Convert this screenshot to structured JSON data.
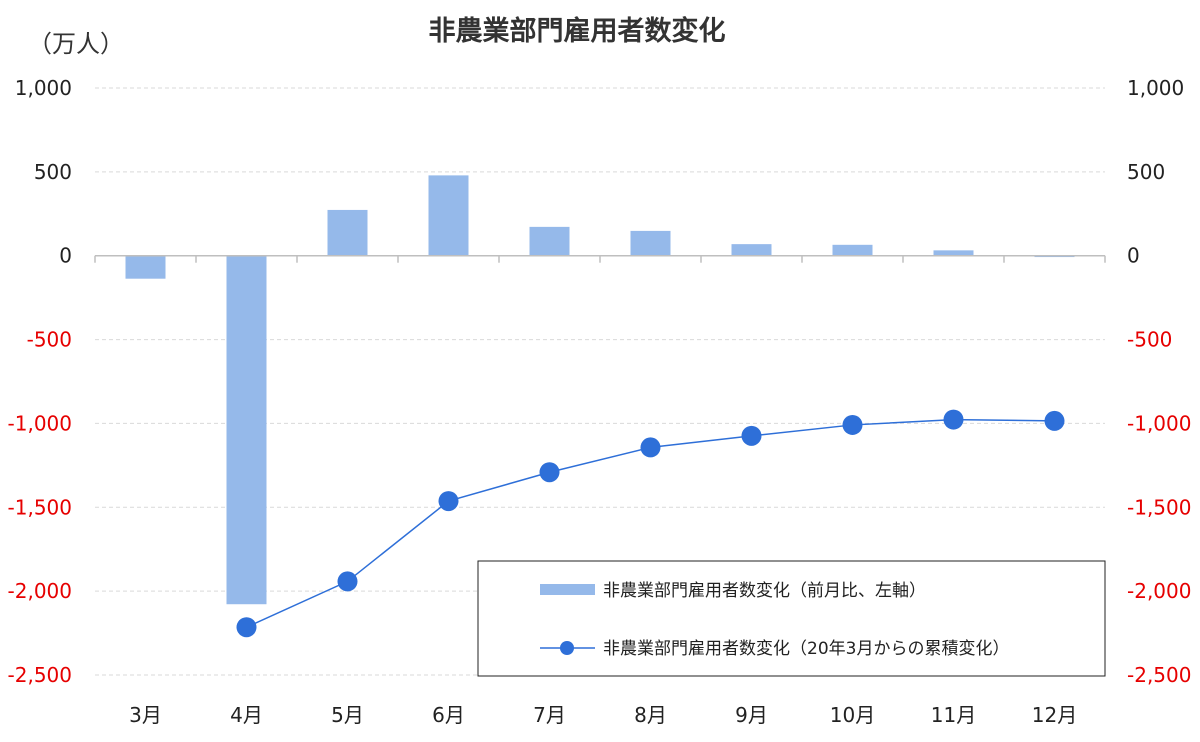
{
  "chart_data": {
    "type": "bar+line",
    "title": "非農業部門雇用者数変化",
    "unit_label": "（万人）",
    "categories": [
      "3月",
      "4月",
      "5月",
      "6月",
      "7月",
      "8月",
      "9月",
      "10月",
      "11月",
      "12月"
    ],
    "series": [
      {
        "name": "非農業部門雇用者数変化（前月比、左軸）",
        "type": "bar",
        "axis": "left",
        "values": [
          -137,
          -2078,
          273,
          479,
          172,
          148,
          69,
          65,
          32,
          -8
        ]
      },
      {
        "name": "非農業部門雇用者数変化（20年3月からの累積変化）",
        "type": "line",
        "axis": "right",
        "values": [
          null,
          -2215,
          -1942,
          -1463,
          -1291,
          -1143,
          -1074,
          -1009,
          -977,
          -985
        ]
      }
    ],
    "y_left": {
      "ticks": [
        1000,
        500,
        0,
        -500,
        -1000,
        -1500,
        -2000,
        -2500
      ],
      "tick_labels": [
        "1,000",
        "500",
        "0",
        "-500",
        "-1,000",
        "-1,500",
        "-2,000",
        "-2,500"
      ],
      "range": [
        -2500,
        1000
      ]
    },
    "y_right": {
      "ticks": [
        1000,
        500,
        0,
        -500,
        -1000,
        -1500,
        -2000,
        -2500
      ],
      "tick_labels": [
        "1,000",
        "500",
        "0",
        "-500",
        "-1,000",
        "-1,500",
        "-2,000",
        "-2,500"
      ],
      "range": [
        -2500,
        1000
      ]
    },
    "negative_tick_color": "#e60000",
    "positive_tick_color": "#222222",
    "bar_color": "#95b9ea",
    "line_color": "#2e6fd8",
    "grid": true,
    "legend_position": "bottom-right"
  }
}
